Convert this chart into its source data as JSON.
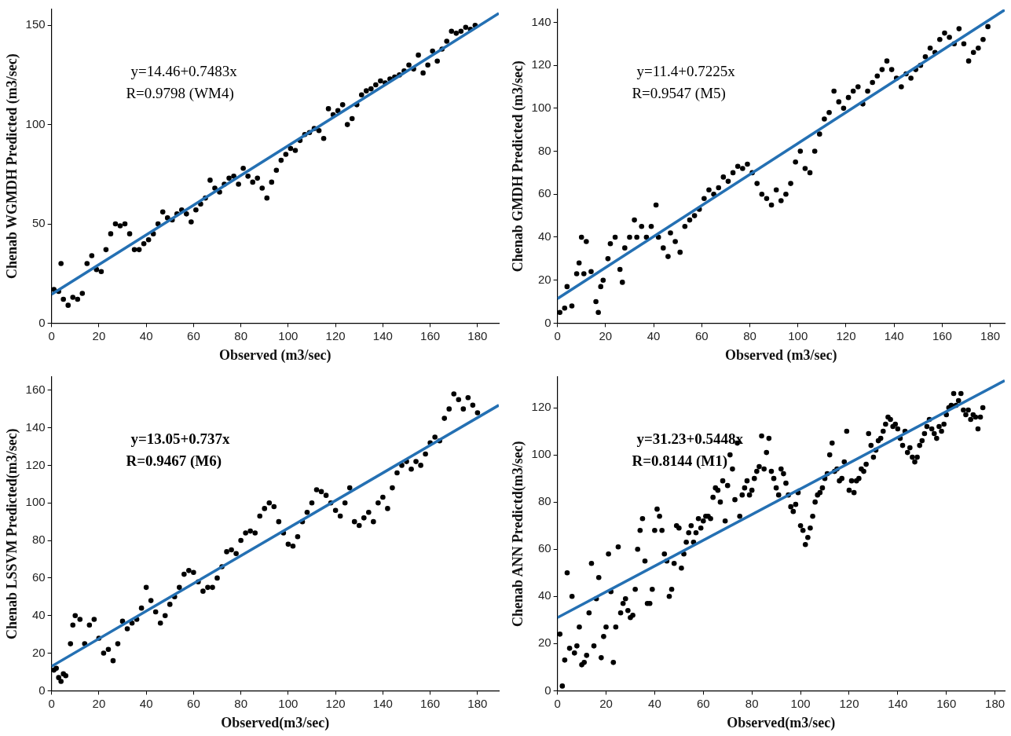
{
  "chart_data": [
    {
      "type": "scatter",
      "xlabel": "Observed (m3/sec)",
      "ylabel": "Chenab WGMDH Predicted (m3/sec)",
      "annotations": [
        "y=14.46+0.7483x",
        "R=0.9798 (WM4)"
      ],
      "xlim": [
        0,
        189
      ],
      "ylim": [
        0,
        158
      ],
      "xticks": [
        0,
        20,
        40,
        60,
        80,
        100,
        120,
        140,
        160,
        180
      ],
      "yticks": [
        0,
        50,
        100,
        150
      ],
      "grid": false,
      "legend": false,
      "series": [
        {
          "marker": "circle",
          "color": "#000000",
          "x": [
            1,
            3,
            4,
            5,
            7,
            9,
            11,
            13,
            15,
            17,
            19,
            21,
            23,
            25,
            27,
            29,
            31,
            33,
            35,
            37,
            39,
            41,
            43,
            45,
            47,
            49,
            51,
            53,
            55,
            57,
            59,
            61,
            63,
            65,
            67,
            69,
            71,
            73,
            75,
            77,
            79,
            81,
            83,
            85,
            87,
            89,
            91,
            93,
            95,
            97,
            99,
            101,
            103,
            105,
            107,
            109,
            111,
            113,
            115,
            117,
            119,
            121,
            123,
            125,
            127,
            129,
            131,
            133,
            135,
            137,
            139,
            141,
            143,
            145,
            147,
            149,
            151,
            153,
            155,
            157,
            159,
            161,
            163,
            165,
            167,
            169,
            171,
            173,
            175,
            177,
            179
          ],
          "values": [
            17,
            16,
            30,
            12,
            9,
            13,
            12,
            15,
            30,
            34,
            27,
            26,
            37,
            45,
            50,
            49,
            50,
            45,
            37,
            37,
            40,
            42,
            45,
            50,
            56,
            53,
            52,
            55,
            57,
            55,
            51,
            57,
            60,
            63,
            72,
            68,
            66,
            70,
            73,
            74,
            70,
            78,
            74,
            71,
            73,
            68,
            63,
            71,
            77,
            82,
            85,
            88,
            87,
            92,
            95,
            96,
            98,
            97,
            93,
            108,
            105,
            107,
            110,
            100,
            103,
            110,
            115,
            117,
            118,
            120,
            122,
            121,
            123,
            124,
            125,
            127,
            130,
            128,
            135,
            126,
            130,
            137,
            132,
            138,
            142,
            147,
            146,
            147,
            149,
            148,
            150
          ]
        },
        {
          "type": "line",
          "color": "#2470b3",
          "x": [
            0,
            189
          ],
          "values": [
            14.5,
            156
          ],
          "marker": "none"
        }
      ]
    },
    {
      "type": "scatter",
      "xlabel": "Observed (m3/sec)",
      "ylabel": "Chenab GMDH Predicted (m3/sec)",
      "annotations": [
        "y=11.4+0.7225x",
        "R=0.9547 (M5)"
      ],
      "xlim": [
        0,
        186
      ],
      "ylim": [
        0,
        146
      ],
      "xticks": [
        0,
        20,
        40,
        60,
        80,
        100,
        120,
        140,
        160,
        180
      ],
      "yticks": [
        0,
        20,
        40,
        60,
        80,
        100,
        120,
        140
      ],
      "grid": false,
      "legend": false,
      "series": [
        {
          "marker": "circle",
          "color": "#000000",
          "x": [
            1,
            3,
            4,
            6,
            8,
            9,
            10,
            11,
            12,
            14,
            16,
            17,
            18,
            19,
            21,
            22,
            24,
            26,
            27,
            28,
            30,
            32,
            33,
            35,
            37,
            39,
            41,
            42,
            44,
            46,
            47,
            49,
            51,
            53,
            55,
            57,
            59,
            61,
            63,
            65,
            67,
            69,
            71,
            73,
            75,
            77,
            79,
            81,
            83,
            85,
            87,
            89,
            91,
            93,
            95,
            97,
            99,
            101,
            103,
            105,
            107,
            109,
            111,
            113,
            115,
            117,
            119,
            121,
            123,
            125,
            127,
            129,
            131,
            133,
            135,
            137,
            139,
            141,
            143,
            145,
            147,
            149,
            151,
            153,
            155,
            157,
            159,
            161,
            163,
            165,
            167,
            169,
            171,
            173,
            175,
            177,
            179
          ],
          "values": [
            5,
            7,
            17,
            8,
            23,
            28,
            40,
            23,
            38,
            24,
            10,
            5,
            17,
            20,
            30,
            37,
            40,
            25,
            19,
            35,
            40,
            48,
            40,
            45,
            40,
            45,
            55,
            40,
            35,
            31,
            42,
            38,
            33,
            45,
            48,
            50,
            53,
            58,
            62,
            60,
            63,
            68,
            66,
            70,
            73,
            72,
            74,
            70,
            65,
            60,
            58,
            55,
            62,
            57,
            60,
            65,
            75,
            80,
            72,
            70,
            80,
            88,
            95,
            98,
            108,
            103,
            100,
            105,
            108,
            110,
            102,
            108,
            112,
            115,
            118,
            122,
            118,
            114,
            110,
            116,
            114,
            118,
            120,
            124,
            128,
            126,
            132,
            135,
            133,
            130,
            137,
            130,
            122,
            126,
            128,
            132,
            138
          ]
        },
        {
          "type": "line",
          "color": "#2470b3",
          "x": [
            0,
            186
          ],
          "values": [
            11.4,
            145.8
          ],
          "marker": "none"
        }
      ]
    },
    {
      "type": "scatter",
      "xlabel": "Observed(m3/sec)",
      "ylabel": "Chenab LSSVM Predicted(m3/sec)",
      "annotations": [
        "y=13.05+0.737x",
        "R=0.9467 (M6)"
      ],
      "xlim": [
        0,
        189
      ],
      "ylim": [
        0,
        167
      ],
      "xticks": [
        0,
        20,
        40,
        60,
        80,
        100,
        120,
        140,
        160,
        180
      ],
      "yticks": [
        0,
        20,
        40,
        60,
        80,
        100,
        120,
        140,
        160
      ],
      "grid": false,
      "legend": false,
      "series": [
        {
          "marker": "circle",
          "color": "#000000",
          "x": [
            1,
            2,
            3,
            4,
            5,
            6,
            8,
            9,
            10,
            12,
            14,
            16,
            18,
            20,
            22,
            24,
            26,
            28,
            30,
            32,
            34,
            36,
            38,
            40,
            42,
            44,
            46,
            48,
            50,
            52,
            54,
            56,
            58,
            60,
            62,
            64,
            66,
            68,
            70,
            72,
            74,
            76,
            78,
            80,
            82,
            84,
            86,
            88,
            90,
            92,
            94,
            96,
            98,
            100,
            102,
            104,
            106,
            108,
            110,
            112,
            114,
            116,
            118,
            120,
            122,
            124,
            126,
            128,
            130,
            132,
            134,
            136,
            138,
            140,
            142,
            144,
            146,
            148,
            150,
            152,
            154,
            156,
            158,
            160,
            162,
            164,
            166,
            168,
            170,
            172,
            174,
            176,
            178,
            180
          ],
          "values": [
            11,
            12,
            7,
            5,
            9,
            8,
            25,
            35,
            40,
            38,
            25,
            35,
            38,
            28,
            20,
            22,
            16,
            25,
            37,
            33,
            36,
            38,
            44,
            55,
            48,
            42,
            36,
            40,
            46,
            50,
            55,
            62,
            64,
            63,
            58,
            53,
            55,
            55,
            60,
            66,
            74,
            75,
            73,
            80,
            84,
            85,
            84,
            93,
            97,
            100,
            98,
            90,
            84,
            78,
            77,
            82,
            90,
            95,
            100,
            107,
            106,
            104,
            100,
            96,
            93,
            100,
            108,
            90,
            88,
            92,
            95,
            90,
            100,
            103,
            97,
            108,
            116,
            120,
            122,
            118,
            122,
            120,
            126,
            132,
            135,
            133,
            145,
            150,
            158,
            155,
            150,
            156,
            152,
            148
          ]
        },
        {
          "type": "line",
          "color": "#2470b3",
          "x": [
            0,
            189
          ],
          "values": [
            13,
            152
          ],
          "marker": "none"
        }
      ]
    },
    {
      "type": "scatter",
      "xlabel": "Observed(m3/sec)",
      "ylabel": "Chenab ANN Predictd(m3/sec)",
      "annotations": [
        "y=31.23+0.5448x",
        "R=0.8144 (M1)"
      ],
      "xlim": [
        0,
        184
      ],
      "ylim": [
        0,
        133
      ],
      "xticks": [
        0,
        20,
        40,
        60,
        80,
        100,
        120,
        140,
        160,
        180
      ],
      "yticks": [
        0,
        20,
        40,
        60,
        80,
        100,
        120
      ],
      "grid": false,
      "legend": false,
      "series": [
        {
          "marker": "circle",
          "color": "#000000",
          "x": [
            1,
            2,
            3,
            4,
            5,
            6,
            7,
            8,
            9,
            10,
            11,
            12,
            13,
            14,
            15,
            16,
            17,
            18,
            19,
            20,
            21,
            22,
            23,
            24,
            25,
            26,
            27,
            28,
            29,
            30,
            31,
            32,
            33,
            34,
            35,
            36,
            37,
            38,
            39,
            40,
            41,
            42,
            43,
            44,
            45,
            46,
            47,
            48,
            49,
            50,
            51,
            52,
            53,
            54,
            55,
            56,
            57,
            58,
            59,
            60,
            61,
            62,
            63,
            64,
            65,
            66,
            67,
            68,
            69,
            70,
            71,
            72,
            73,
            74,
            75,
            76,
            77,
            78,
            79,
            80,
            81,
            82,
            83,
            84,
            85,
            86,
            87,
            88,
            89,
            90,
            91,
            92,
            93,
            94,
            95,
            96,
            97,
            98,
            99,
            100,
            101,
            102,
            103,
            104,
            105,
            106,
            107,
            108,
            109,
            110,
            111,
            112,
            113,
            114,
            115,
            116,
            117,
            118,
            119,
            120,
            121,
            122,
            123,
            124,
            125,
            126,
            127,
            128,
            129,
            130,
            131,
            132,
            133,
            134,
            135,
            136,
            137,
            138,
            139,
            140,
            141,
            142,
            143,
            144,
            145,
            146,
            147,
            148,
            149,
            150,
            151,
            152,
            153,
            154,
            155,
            156,
            157,
            158,
            159,
            160,
            161,
            162,
            163,
            164,
            165,
            166,
            167,
            168,
            169,
            170,
            171,
            172,
            173,
            174,
            175
          ],
          "values": [
            24,
            2,
            13,
            50,
            18,
            40,
            16,
            19,
            27,
            11,
            12,
            15,
            33,
            54,
            19,
            39,
            48,
            14,
            23,
            27,
            58,
            42,
            12,
            27,
            61,
            33,
            37,
            39,
            34,
            31,
            32,
            43,
            60,
            68,
            73,
            55,
            37,
            37,
            43,
            68,
            77,
            74,
            68,
            58,
            55,
            40,
            43,
            54,
            70,
            69,
            52,
            58,
            63,
            67,
            70,
            63,
            67,
            73,
            69,
            72,
            74,
            74,
            73,
            82,
            86,
            85,
            80,
            89,
            72,
            87,
            100,
            94,
            81,
            105,
            74,
            83,
            86,
            89,
            83,
            85,
            90,
            93,
            95,
            108,
            94,
            101,
            107,
            93,
            90,
            86,
            83,
            94,
            92,
            88,
            83,
            78,
            76,
            79,
            84,
            70,
            68,
            62,
            65,
            69,
            74,
            80,
            83,
            84,
            86,
            90,
            92,
            100,
            105,
            93,
            94,
            89,
            90,
            97,
            110,
            85,
            89,
            84,
            89,
            90,
            94,
            93,
            96,
            109,
            104,
            99,
            102,
            106,
            107,
            110,
            113,
            116,
            115,
            112,
            113,
            111,
            107,
            104,
            110,
            101,
            103,
            99,
            97,
            99,
            104,
            106,
            109,
            112,
            115,
            111,
            109,
            107,
            112,
            110,
            113,
            117,
            120,
            121,
            126,
            121,
            123,
            126,
            119,
            117,
            119,
            115,
            117,
            116,
            111,
            116,
            120
          ]
        },
        {
          "type": "line",
          "color": "#2470b3",
          "x": [
            0,
            184
          ],
          "values": [
            31,
            131.5
          ],
          "marker": "none"
        }
      ]
    }
  ]
}
